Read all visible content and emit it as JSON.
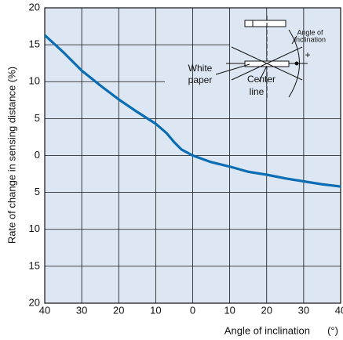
{
  "chart_data": {
    "type": "line",
    "x_label": "Angle of inclination",
    "x_unit": "(°)",
    "y_label": "Rate of change in sensing distance (%)",
    "x": [
      -40,
      -35,
      -30,
      -25,
      -20,
      -15,
      -10,
      -7,
      -5,
      -3,
      0,
      5,
      10,
      15,
      20,
      25,
      30,
      35,
      40
    ],
    "series": [
      {
        "color": "#0a6db3",
        "values": [
          16.3,
          14,
          11.5,
          9.5,
          7.6,
          5.9,
          4.3,
          3,
          1.8,
          0.8,
          0,
          -0.9,
          -1.5,
          -2.2,
          -2.6,
          -3.1,
          -3.5,
          -3.9,
          -4.2
        ]
      }
    ],
    "xlim": [
      -40,
      40
    ],
    "ylim": [
      -20,
      20
    ],
    "xticks": [
      {
        "value": -40,
        "label": "40"
      },
      {
        "value": -30,
        "label": "30"
      },
      {
        "value": -20,
        "label": "20"
      },
      {
        "value": -10,
        "label": "10"
      },
      0,
      10,
      20,
      30,
      40
    ],
    "yticks": [
      {
        "value": -20,
        "label": "20"
      },
      {
        "value": -15,
        "label": "15"
      },
      {
        "value": -10,
        "label": "10"
      },
      {
        "value": -5,
        "label": "5"
      },
      0,
      5,
      10,
      15,
      20
    ],
    "grid": true,
    "plot_background": "#dde7f3",
    "annotations": [
      "Angle of",
      "inclination",
      "White",
      "paper",
      "Center",
      "line",
      "+"
    ]
  }
}
